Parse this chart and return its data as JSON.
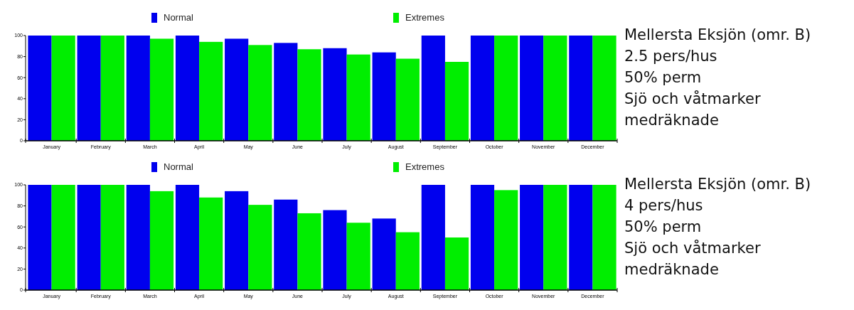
{
  "chart_data": [
    {
      "type": "bar",
      "categories": [
        "January",
        "February",
        "March",
        "April",
        "May",
        "June",
        "July",
        "August",
        "September",
        "October",
        "November",
        "December"
      ],
      "series": [
        {
          "name": "Normal",
          "color": "#0000ee",
          "values": [
            100,
            100,
            100,
            100,
            97,
            93,
            88,
            84,
            100,
            100,
            100,
            100
          ]
        },
        {
          "name": "Extremes",
          "color": "#00ee00",
          "values": [
            100,
            100,
            97,
            94,
            91,
            87,
            82,
            78,
            75,
            100,
            100,
            100
          ]
        }
      ],
      "ylim": [
        0,
        100
      ],
      "yticks": [
        0,
        20,
        40,
        60,
        80,
        100
      ],
      "legend": "top",
      "grid": false
    },
    {
      "type": "other",
      "annotations": [
        "Mellersta Eksjön (omr. B)",
        "2.5 pers/hus",
        "50% perm",
        "Sjö och våtmarker",
        "medräknade"
      ]
    },
    {
      "type": "bar",
      "categories": [
        "January",
        "February",
        "March",
        "April",
        "May",
        "June",
        "July",
        "August",
        "September",
        "October",
        "November",
        "December"
      ],
      "series": [
        {
          "name": "Normal",
          "color": "#0000ee",
          "values": [
            100,
            100,
            100,
            100,
            94,
            86,
            76,
            68,
            100,
            100,
            100,
            100
          ]
        },
        {
          "name": "Extremes",
          "color": "#00ee00",
          "values": [
            100,
            100,
            94,
            88,
            81,
            73,
            64,
            55,
            50,
            95,
            100,
            100
          ]
        }
      ],
      "ylim": [
        0,
        100
      ],
      "yticks": [
        0,
        20,
        40,
        60,
        80,
        100
      ],
      "legend": "top",
      "grid": false
    },
    {
      "type": "other",
      "annotations": [
        "Mellersta Eksjön (omr. B)",
        "4 pers/hus",
        "50% perm",
        "Sjö och våtmarker",
        "medräknade"
      ]
    }
  ]
}
